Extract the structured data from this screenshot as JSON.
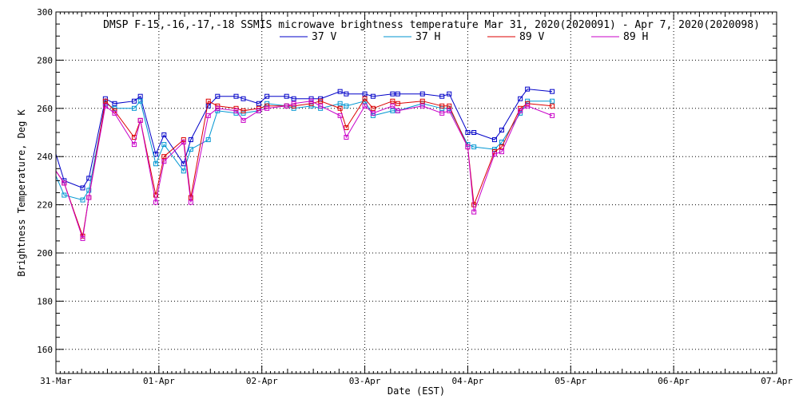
{
  "chart_data": {
    "type": "line",
    "title": "DMSP F-15,-16,-17,-18 SSMIS microwave brightness temperature Mar 31, 2020(2020091) - Apr  7, 2020(2020098)",
    "xlabel": "Date (EST)",
    "ylabel": "Brightness Temperature, Deg K",
    "x_tick_labels": [
      "31-Mar",
      "01-Apr",
      "02-Apr",
      "03-Apr",
      "04-Apr",
      "05-Apr",
      "06-Apr",
      "07-Apr"
    ],
    "x_unit": "days since 31-Mar 00:00",
    "xlim": [
      0,
      7
    ],
    "ylim": [
      150,
      300
    ],
    "y_ticks": [
      160,
      180,
      200,
      220,
      240,
      260,
      280,
      300
    ],
    "grid": true,
    "legend_position": "top-center",
    "series": [
      {
        "name": "37 V",
        "color": "#0000c8",
        "x": [
          0.08,
          0.26,
          0.32,
          0.48,
          0.57,
          0.76,
          0.82,
          0.97,
          1.05,
          1.24,
          1.31,
          1.48,
          1.57,
          1.75,
          1.82,
          1.97,
          2.05,
          2.24,
          2.31,
          2.48,
          2.57,
          2.76,
          2.82,
          3.0,
          3.08,
          3.27,
          3.32,
          3.56,
          3.75,
          3.82,
          4.0,
          4.06,
          4.26,
          4.33,
          4.51,
          4.58,
          4.82
        ],
        "y": [
          230,
          227,
          231,
          264,
          262,
          263,
          265,
          241,
          249,
          237,
          247,
          261,
          265,
          265,
          264,
          262,
          265,
          265,
          264,
          264,
          264,
          267,
          266,
          266,
          265,
          266,
          266,
          266,
          265,
          266,
          250,
          250,
          247,
          251,
          264,
          268,
          267
        ]
      },
      {
        "name": "37 H",
        "color": "#0096d2",
        "x": [
          0.08,
          0.26,
          0.32,
          0.48,
          0.57,
          0.76,
          0.82,
          0.97,
          1.05,
          1.24,
          1.31,
          1.48,
          1.57,
          1.75,
          1.82,
          1.97,
          2.05,
          2.24,
          2.31,
          2.48,
          2.57,
          2.76,
          2.82,
          3.0,
          3.08,
          3.27,
          3.32,
          3.56,
          3.75,
          3.82,
          4.0,
          4.06,
          4.26,
          4.33,
          4.51,
          4.58,
          4.82
        ],
        "y": [
          224,
          222,
          226,
          262,
          260,
          260,
          263,
          237,
          245,
          234,
          243,
          247,
          259,
          258,
          258,
          259,
          262,
          261,
          260,
          261,
          260,
          262,
          261,
          263,
          257,
          259,
          259,
          262,
          260,
          260,
          245,
          244,
          243,
          246,
          258,
          263,
          263
        ]
      },
      {
        "name": "89 V",
        "color": "#dc0000",
        "x": [
          0.08,
          0.26,
          0.32,
          0.48,
          0.57,
          0.76,
          0.82,
          0.97,
          1.05,
          1.24,
          1.31,
          1.48,
          1.57,
          1.75,
          1.82,
          1.97,
          2.05,
          2.24,
          2.31,
          2.48,
          2.57,
          2.76,
          2.82,
          3.0,
          3.08,
          3.27,
          3.32,
          3.56,
          3.75,
          3.82,
          4.0,
          4.06,
          4.26,
          4.33,
          4.51,
          4.58,
          4.82
        ],
        "y": [
          229,
          207,
          223,
          263,
          259,
          248,
          255,
          224,
          240,
          247,
          223,
          263,
          261,
          260,
          259,
          260,
          261,
          261,
          261,
          262,
          263,
          260,
          252,
          264,
          260,
          263,
          262,
          263,
          261,
          261,
          244,
          220,
          242,
          244,
          260,
          262,
          261
        ]
      },
      {
        "name": "89 H",
        "color": "#c800c8",
        "x": [
          0.08,
          0.26,
          0.32,
          0.48,
          0.57,
          0.76,
          0.82,
          0.97,
          1.05,
          1.24,
          1.31,
          1.48,
          1.57,
          1.75,
          1.82,
          1.97,
          2.05,
          2.24,
          2.31,
          2.48,
          2.57,
          2.76,
          2.82,
          3.0,
          3.08,
          3.27,
          3.32,
          3.56,
          3.75,
          3.82,
          4.0,
          4.06,
          4.26,
          4.33,
          4.51,
          4.58,
          4.82
        ],
        "y": [
          229,
          206,
          223,
          261,
          258,
          245,
          255,
          221,
          238,
          246,
          221,
          257,
          260,
          259,
          255,
          259,
          260,
          261,
          262,
          263,
          261,
          257,
          248,
          261,
          258,
          261,
          259,
          261,
          258,
          259,
          244,
          217,
          241,
          242,
          259,
          261,
          257
        ]
      }
    ]
  }
}
